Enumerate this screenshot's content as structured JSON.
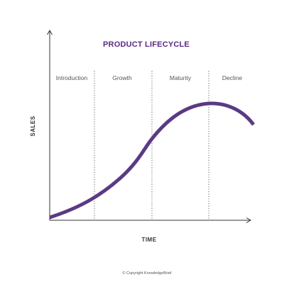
{
  "title": "PRODUCT LIFECYCLE",
  "stages": [
    {
      "label": "Introduction"
    },
    {
      "label": "Growth"
    },
    {
      "label": "Maturity"
    },
    {
      "label": "Decline"
    }
  ],
  "axes": {
    "x_label": "TIME",
    "y_label": "SALES"
  },
  "copyright": "© Copyright KnowledgeBrief",
  "colors": {
    "title": "#5b2a86",
    "curve": "#5b3a84",
    "copyright_symbol": "#5b2a86",
    "axis": "#333333",
    "divider": "#666666"
  }
}
